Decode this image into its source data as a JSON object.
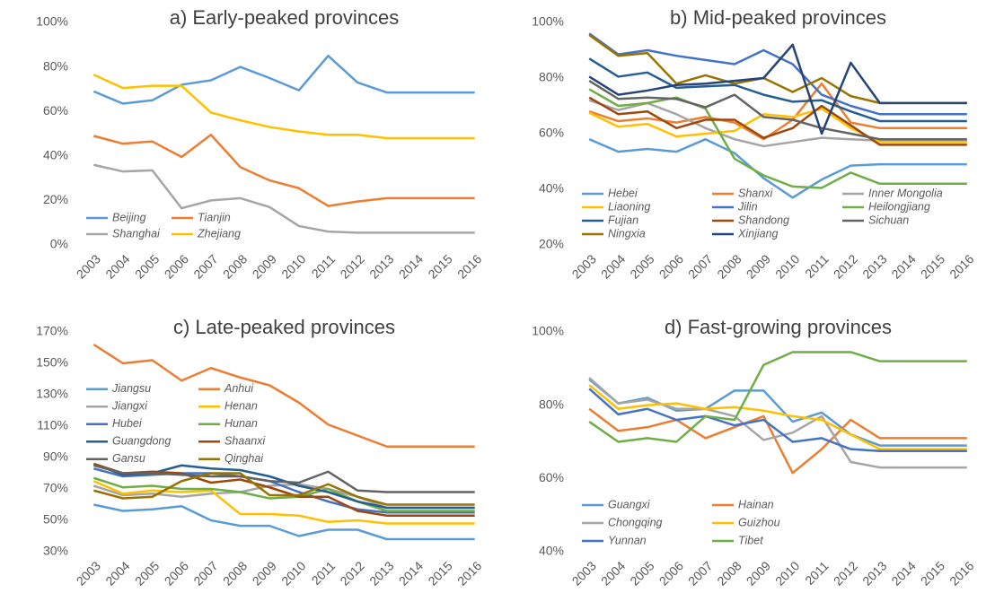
{
  "chart_data": [
    {
      "type": "line",
      "title": "a) Early-peaked provinces",
      "legend": "lower left",
      "grid": false,
      "categories": [
        "2003",
        "2004",
        "2005",
        "2006",
        "2007",
        "2008",
        "2009",
        "2010",
        "2011",
        "2012",
        "2013",
        "2014",
        "2015",
        "2016"
      ],
      "ylim": [
        0,
        100
      ],
      "yticks": [
        {
          "value": 0,
          "label": "0%"
        },
        {
          "value": 20,
          "label": "20%"
        },
        {
          "value": 40,
          "label": "40%"
        },
        {
          "value": 60,
          "label": "60%"
        },
        {
          "value": 80,
          "label": "80%"
        },
        {
          "value": 100,
          "label": "100%"
        }
      ],
      "series": [
        {
          "name": "Beijing",
          "color": "#5b9bd5",
          "values": [
            69,
            63.5,
            65,
            72,
            74,
            80,
            75,
            69.5,
            85,
            73,
            68.5,
            68.5,
            68.5,
            68.5
          ]
        },
        {
          "name": "Tianjin",
          "color": "#ed7d31",
          "values": [
            49,
            45.5,
            46.5,
            39.5,
            49.5,
            35,
            29,
            25.5,
            17.5,
            19.5,
            21,
            21,
            21,
            21
          ]
        },
        {
          "name": "Shanghai",
          "color": "#a5a5a5",
          "values": [
            36,
            33,
            33.5,
            16.5,
            20,
            21,
            17,
            8.5,
            6,
            5.5,
            5.5,
            5.5,
            5.5,
            5.5
          ]
        },
        {
          "name": "Zhejiang",
          "color": "#ffc000",
          "values": [
            76.5,
            70.5,
            71.5,
            71.5,
            59.5,
            56,
            53,
            51,
            49.5,
            49.5,
            48,
            48,
            48,
            48
          ]
        }
      ]
    },
    {
      "type": "line",
      "title": "b) Mid-peaked provinces",
      "legend": "lower left",
      "grid": false,
      "categories": [
        "2003",
        "2004",
        "2005",
        "2006",
        "2007",
        "2008",
        "2009",
        "2010",
        "2011",
        "2012",
        "2013",
        "2014",
        "2015",
        "2016"
      ],
      "ylim": [
        20,
        100
      ],
      "yticks": [
        {
          "value": 20,
          "label": "20%"
        },
        {
          "value": 40,
          "label": "40%"
        },
        {
          "value": 60,
          "label": "60%"
        },
        {
          "value": 80,
          "label": "80%"
        },
        {
          "value": 100,
          "label": "100%"
        }
      ],
      "series": [
        {
          "name": "Hebei",
          "color": "#5b9bd5",
          "values": [
            58,
            53.5,
            54.5,
            53.5,
            58,
            53,
            44,
            37,
            43.5,
            48.5,
            49,
            49,
            49,
            49
          ]
        },
        {
          "name": "Shanxi",
          "color": "#ed7d31",
          "values": [
            68,
            64.5,
            65.5,
            64,
            66,
            64,
            58,
            65,
            78,
            64,
            62,
            62,
            62,
            62
          ]
        },
        {
          "name": "Inner Mongolia",
          "color": "#a5a5a5",
          "values": [
            72,
            68.5,
            71,
            67,
            62,
            58,
            55.5,
            57,
            58.5,
            58,
            57.5,
            57.5,
            57.5,
            57.5
          ]
        },
        {
          "name": "Liaoning",
          "color": "#ffc000",
          "values": [
            67.5,
            62.5,
            63.5,
            59,
            60,
            61,
            67,
            66,
            69,
            62,
            57,
            57,
            57,
            57
          ]
        },
        {
          "name": "Jilin",
          "color": "#4472c4",
          "values": [
            96,
            88.5,
            90,
            88,
            86.5,
            85,
            90,
            85,
            74,
            70,
            67,
            67,
            67,
            67
          ]
        },
        {
          "name": "Heilongjiang",
          "color": "#70ad47",
          "values": [
            76,
            70,
            71,
            73,
            69,
            51,
            45,
            41,
            40.5,
            46,
            42,
            42,
            42,
            42
          ]
        },
        {
          "name": "Fujian",
          "color": "#255e91",
          "values": [
            87,
            80.5,
            82,
            76.5,
            77,
            77.5,
            74,
            71.5,
            72,
            68,
            64.5,
            64.5,
            64.5,
            64.5
          ]
        },
        {
          "name": "Shandong",
          "color": "#9e480e",
          "values": [
            73,
            67,
            68,
            62,
            65,
            65,
            58.5,
            62,
            70,
            63,
            56,
            56,
            56,
            56
          ]
        },
        {
          "name": "Sichuan",
          "color": "#636363",
          "values": [
            79,
            72.5,
            73,
            72.5,
            69.5,
            74,
            66,
            65,
            62,
            60,
            58,
            58,
            58,
            58
          ]
        },
        {
          "name": "Ningxia",
          "color": "#997300",
          "values": [
            95.5,
            88,
            89,
            78,
            81,
            78,
            80,
            75,
            80,
            73.5,
            71,
            71,
            71,
            71
          ]
        },
        {
          "name": "Xinjiang",
          "color": "#264478",
          "values": [
            80.5,
            74,
            75.5,
            77.5,
            78,
            79,
            80,
            92,
            60,
            85.5,
            71,
            71,
            71,
            71
          ]
        }
      ]
    },
    {
      "type": "line",
      "title": "c) Late-peaked provinces",
      "legend": "center left",
      "grid": false,
      "categories": [
        "2003",
        "2004",
        "2005",
        "2006",
        "2007",
        "2008",
        "2009",
        "2010",
        "2011",
        "2012",
        "2013",
        "2014",
        "2015",
        "2016"
      ],
      "ylim": [
        30,
        170
      ],
      "yticks": [
        {
          "value": 30,
          "label": "30%"
        },
        {
          "value": 50,
          "label": "50%"
        },
        {
          "value": 70,
          "label": "70%"
        },
        {
          "value": 90,
          "label": "90%"
        },
        {
          "value": 110,
          "label": "110%"
        },
        {
          "value": 130,
          "label": "130%"
        },
        {
          "value": 150,
          "label": "150%"
        },
        {
          "value": 170,
          "label": "170%"
        }
      ],
      "series": [
        {
          "name": "Jiangsu",
          "color": "#5b9bd5",
          "values": [
            60,
            56,
            57,
            59,
            50,
            46.5,
            46.5,
            40,
            44,
            44,
            38,
            38,
            38,
            38
          ]
        },
        {
          "name": "Anhui",
          "color": "#ed7d31",
          "values": [
            162,
            150,
            152,
            139,
            147,
            141,
            136,
            125,
            111,
            104,
            97,
            97,
            97,
            97
          ]
        },
        {
          "name": "Jiangxi",
          "color": "#a5a5a5",
          "values": [
            72,
            66,
            67,
            65,
            67,
            68,
            72,
            73,
            70,
            65,
            58,
            58,
            58,
            58
          ]
        },
        {
          "name": "Henan",
          "color": "#ffc000",
          "values": [
            75,
            67,
            69,
            68,
            69,
            54,
            54,
            53,
            49,
            50,
            48,
            48,
            48,
            48
          ]
        },
        {
          "name": "Hubei",
          "color": "#4472c4",
          "values": [
            83,
            78,
            79,
            80,
            80,
            78,
            75,
            68,
            62,
            57,
            55,
            55,
            55,
            55
          ]
        },
        {
          "name": "Hunan",
          "color": "#70ad47",
          "values": [
            77,
            71,
            72,
            70,
            70,
            68,
            64,
            65,
            70,
            62,
            56,
            56,
            56,
            56
          ]
        },
        {
          "name": "Guangdong",
          "color": "#255e91",
          "values": [
            86,
            79,
            80,
            85,
            83,
            82,
            78,
            72,
            68,
            62,
            58,
            58,
            58,
            58
          ]
        },
        {
          "name": "Shaanxi",
          "color": "#9e480e",
          "values": [
            86,
            80,
            81,
            80,
            74,
            76,
            71,
            65,
            65,
            56,
            53,
            53,
            53,
            53
          ]
        },
        {
          "name": "Gansu",
          "color": "#636363",
          "values": [
            85,
            80,
            80,
            79,
            78,
            78,
            75,
            74,
            81,
            69,
            68,
            68,
            68,
            68
          ]
        },
        {
          "name": "Qinghai",
          "color": "#997300",
          "values": [
            69,
            64,
            65,
            75,
            80,
            80,
            66,
            66,
            73,
            65,
            60,
            60,
            60,
            60
          ]
        }
      ]
    },
    {
      "type": "line",
      "title": "d) Fast-growing provinces",
      "legend": "lower left",
      "grid": false,
      "categories": [
        "2003",
        "2004",
        "2005",
        "2006",
        "2007",
        "2008",
        "2009",
        "2010",
        "2011",
        "2012",
        "2013",
        "2014",
        "2015",
        "2016"
      ],
      "ylim": [
        40,
        100
      ],
      "yticks": [
        {
          "value": 40,
          "label": "40%"
        },
        {
          "value": 60,
          "label": "60%"
        },
        {
          "value": 80,
          "label": "80%"
        },
        {
          "value": 100,
          "label": "100%"
        }
      ],
      "series": [
        {
          "name": "Guangxi",
          "color": "#5b9bd5",
          "values": [
            87,
            80.5,
            82,
            78.5,
            79,
            84,
            84,
            75.5,
            78,
            72,
            69,
            69,
            69,
            69
          ]
        },
        {
          "name": "Hainan",
          "color": "#ed7d31",
          "values": [
            79,
            73,
            74,
            76,
            71,
            74,
            77,
            61.5,
            68,
            76,
            71,
            71,
            71,
            71
          ]
        },
        {
          "name": "Chongqing",
          "color": "#a5a5a5",
          "values": [
            87.5,
            80.5,
            81.5,
            79,
            79,
            77,
            70.5,
            72.5,
            77,
            64.5,
            63,
            63,
            63,
            63
          ]
        },
        {
          "name": "Guizhou",
          "color": "#ffc000",
          "values": [
            85.5,
            79,
            80,
            80.5,
            79,
            79.5,
            78.5,
            77,
            76,
            72,
            68,
            68,
            68,
            68
          ]
        },
        {
          "name": "Yunnan",
          "color": "#4472c4",
          "values": [
            84.5,
            77.5,
            79,
            76,
            77,
            74.5,
            76,
            70,
            71,
            68,
            67.5,
            67.5,
            67.5,
            67.5
          ]
        },
        {
          "name": "Tibet",
          "color": "#70ad47",
          "values": [
            75.5,
            70,
            71,
            70,
            77,
            76,
            91,
            94.5,
            94.5,
            94.5,
            92,
            92,
            92,
            92
          ]
        }
      ]
    }
  ]
}
